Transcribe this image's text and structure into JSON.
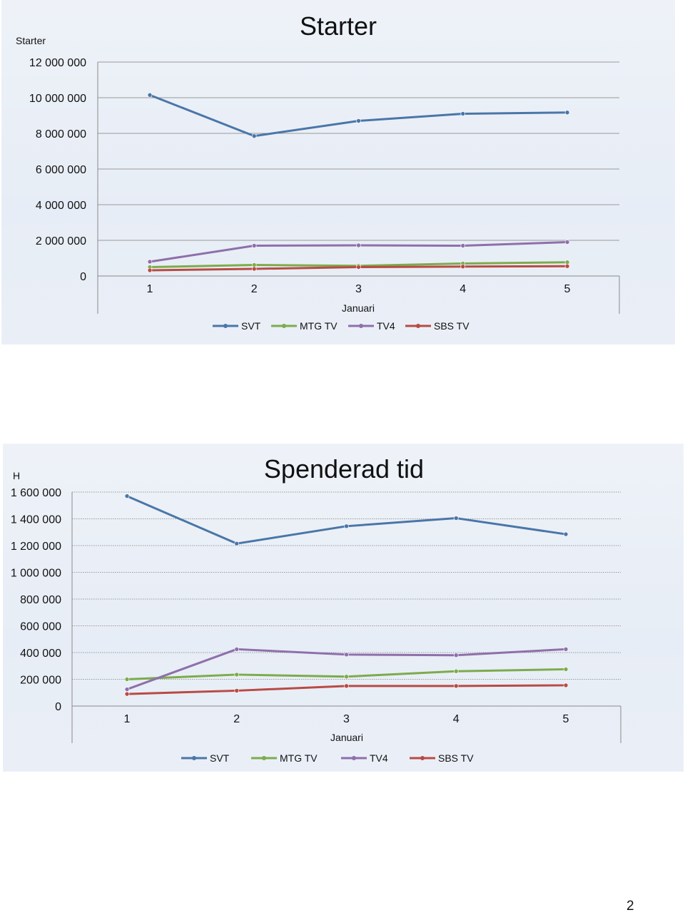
{
  "page_number": "2",
  "chart_data": [
    {
      "type": "line",
      "title": "Starter",
      "ylabel": "Starter",
      "xlabel": "Januari",
      "categories": [
        "1",
        "2",
        "3",
        "4",
        "5"
      ],
      "ylim": [
        0,
        12000000
      ],
      "yticks": [
        "0",
        "2 000 000",
        "4 000 000",
        "6 000 000",
        "8 000 000",
        "10 000 000",
        "12 000 000"
      ],
      "ytick_values": [
        0,
        2000000,
        4000000,
        6000000,
        8000000,
        10000000,
        12000000
      ],
      "grid": "solid",
      "legend": "bottom",
      "series": [
        {
          "name": "SVT",
          "color": "#4a76a8",
          "values": [
            10150000,
            7850000,
            8700000,
            9100000,
            9170000
          ]
        },
        {
          "name": "MTG TV",
          "color": "#7dab4c",
          "values": [
            500000,
            620000,
            570000,
            700000,
            770000
          ]
        },
        {
          "name": "TV4",
          "color": "#8e6fab",
          "values": [
            800000,
            1700000,
            1720000,
            1700000,
            1900000
          ]
        },
        {
          "name": "SBS TV",
          "color": "#b84b44",
          "values": [
            320000,
            400000,
            500000,
            530000,
            550000
          ]
        }
      ]
    },
    {
      "type": "line",
      "title": "Spenderad tid",
      "ylabel": "H",
      "xlabel": "Januari",
      "categories": [
        "1",
        "2",
        "3",
        "4",
        "5"
      ],
      "ylim": [
        0,
        1600000
      ],
      "yticks": [
        "0",
        "200 000",
        "400 000",
        "600 000",
        "800 000",
        "1 000 000",
        "1 200 000",
        "1 400 000",
        "1 600 000"
      ],
      "ytick_values": [
        0,
        200000,
        400000,
        600000,
        800000,
        1000000,
        1200000,
        1400000,
        1600000
      ],
      "grid": "dotted",
      "legend": "bottom",
      "series": [
        {
          "name": "SVT",
          "color": "#4a76a8",
          "values": [
            1570000,
            1215000,
            1345000,
            1405000,
            1285000
          ]
        },
        {
          "name": "MTG TV",
          "color": "#7dab4c",
          "values": [
            200000,
            235000,
            220000,
            260000,
            275000
          ]
        },
        {
          "name": "TV4",
          "color": "#8e6fab",
          "values": [
            125000,
            425000,
            385000,
            380000,
            425000
          ]
        },
        {
          "name": "SBS TV",
          "color": "#b84b44",
          "values": [
            90000,
            115000,
            150000,
            150000,
            155000
          ]
        }
      ]
    }
  ]
}
